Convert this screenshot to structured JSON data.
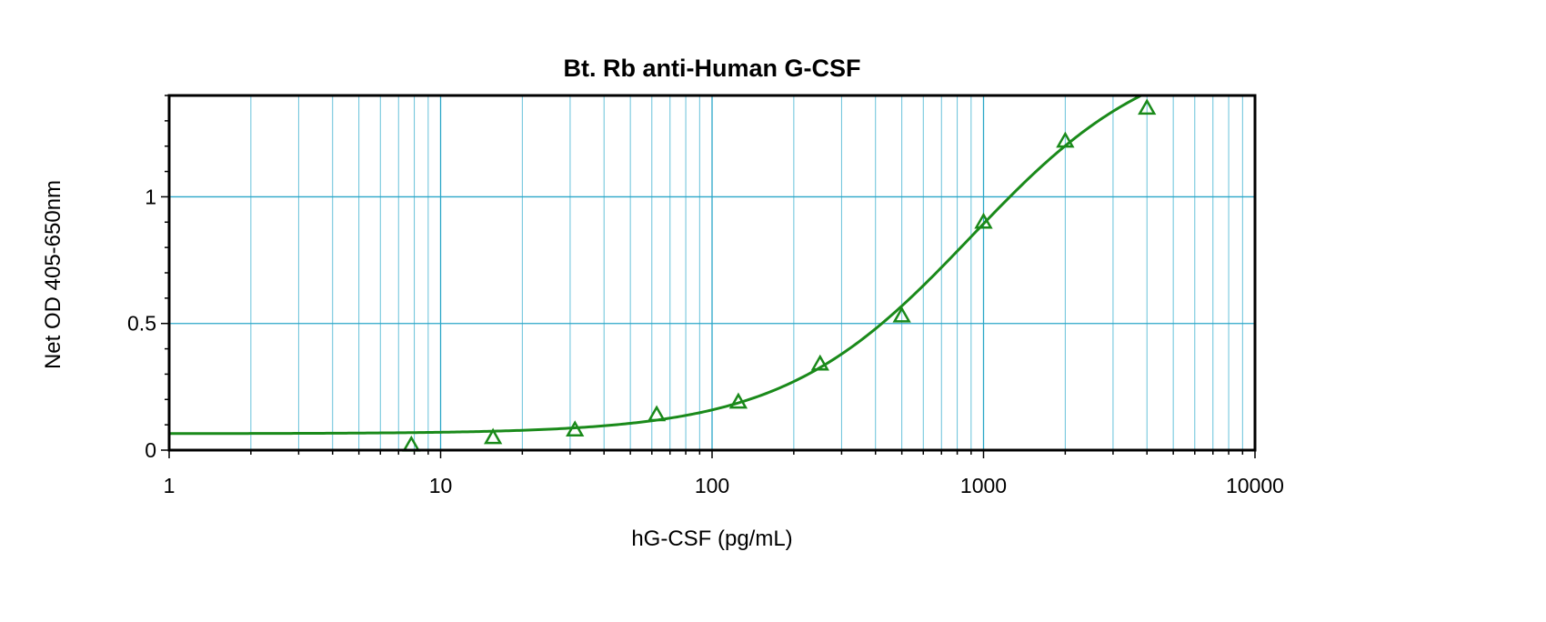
{
  "chart_data": {
    "type": "scatter",
    "title": "Bt. Rb anti-Human G-CSF",
    "xlabel": "hG-CSF (pg/mL)",
    "ylabel": "Net OD 405-650nm",
    "x_scale": "log",
    "xlim": [
      1,
      10000
    ],
    "ylim": [
      0,
      1.4
    ],
    "x_ticks": [
      1,
      10,
      100,
      1000,
      10000
    ],
    "x_tick_labels": [
      "1",
      "10",
      "100",
      "1000",
      "10000"
    ],
    "y_ticks": [
      0,
      0.5,
      1
    ],
    "y_tick_labels": [
      "0",
      "0.5",
      "1"
    ],
    "grid": true,
    "series": [
      {
        "marker": "triangle",
        "color": "#1a8a1a",
        "x": [
          7.8,
          15.6,
          31.25,
          62.5,
          125,
          250,
          500,
          1000,
          2000,
          4000
        ],
        "y": [
          0.02,
          0.05,
          0.08,
          0.14,
          0.19,
          0.34,
          0.53,
          0.9,
          1.22,
          1.35
        ]
      }
    ],
    "fit_curve": {
      "type": "4PL",
      "color": "#1a8a1a",
      "bottom": 0.065,
      "top": 1.62,
      "ec50": 900,
      "hill": 1.25
    }
  }
}
